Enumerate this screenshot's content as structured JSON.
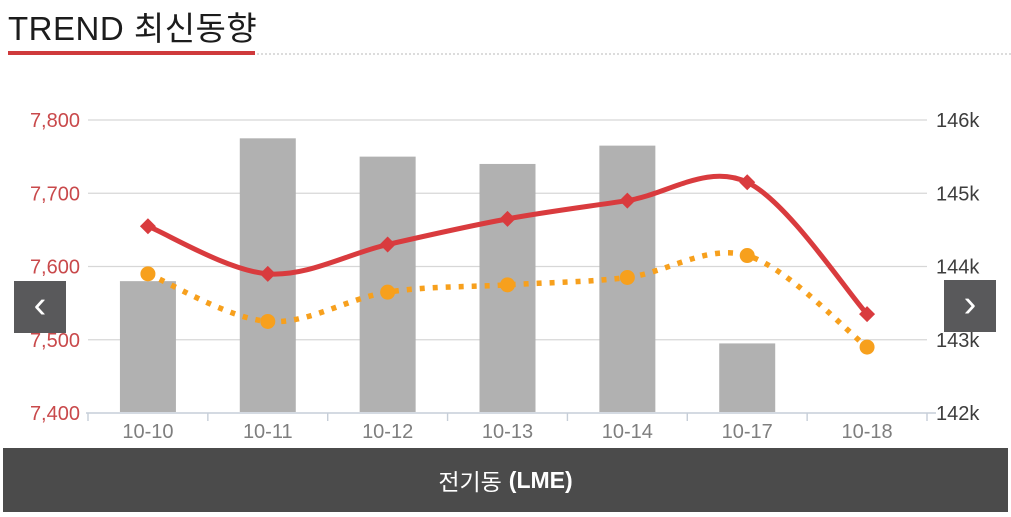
{
  "header": {
    "title": "TREND 최신동향",
    "accent_color": "#cf3a3c"
  },
  "nav": {
    "prev": "‹",
    "next": "›"
  },
  "footer": {
    "name": "전기동",
    "suffix": "(LME)"
  },
  "chart_data": {
    "type": "combo-bar-line",
    "title": "",
    "categories": [
      "10-10",
      "10-11",
      "10-12",
      "10-13",
      "10-14",
      "10-17",
      "10-18"
    ],
    "left_axis": {
      "min": 7400,
      "max": 7800,
      "step": 100,
      "tick_labels": [
        "7,800",
        "7,700",
        "7,600",
        "7,500",
        "7,400"
      ],
      "label_color": "#c9494b"
    },
    "right_axis": {
      "min": 142000,
      "max": 146000,
      "step": 1000,
      "tick_labels": [
        "146k",
        "145k",
        "144k",
        "143k",
        "142k"
      ],
      "label_color": "#3d3d3d"
    },
    "x_axis": {
      "label_color": "#7e7e7e",
      "line_color": "#c6ced8"
    },
    "grid": true,
    "grid_color": "#d7d7d7",
    "legend": "none",
    "series": [
      {
        "name": "gray-bars",
        "type": "bar",
        "axis": "right",
        "color": "#b1b1b1",
        "values": [
          143800,
          145750,
          145500,
          145400,
          145650,
          142950,
          null
        ]
      },
      {
        "name": "red-solid-line",
        "type": "line",
        "axis": "left",
        "style": "solid",
        "marker": "diamond",
        "color": "#d93b3e",
        "values": [
          7655,
          7590,
          7630,
          7665,
          7690,
          7715,
          7535
        ]
      },
      {
        "name": "orange-dotted-line",
        "type": "line",
        "axis": "left",
        "style": "dotted",
        "marker": "circle",
        "color": "#f7a01d",
        "values": [
          7590,
          7525,
          7565,
          7575,
          7585,
          7615,
          7490
        ]
      }
    ]
  }
}
